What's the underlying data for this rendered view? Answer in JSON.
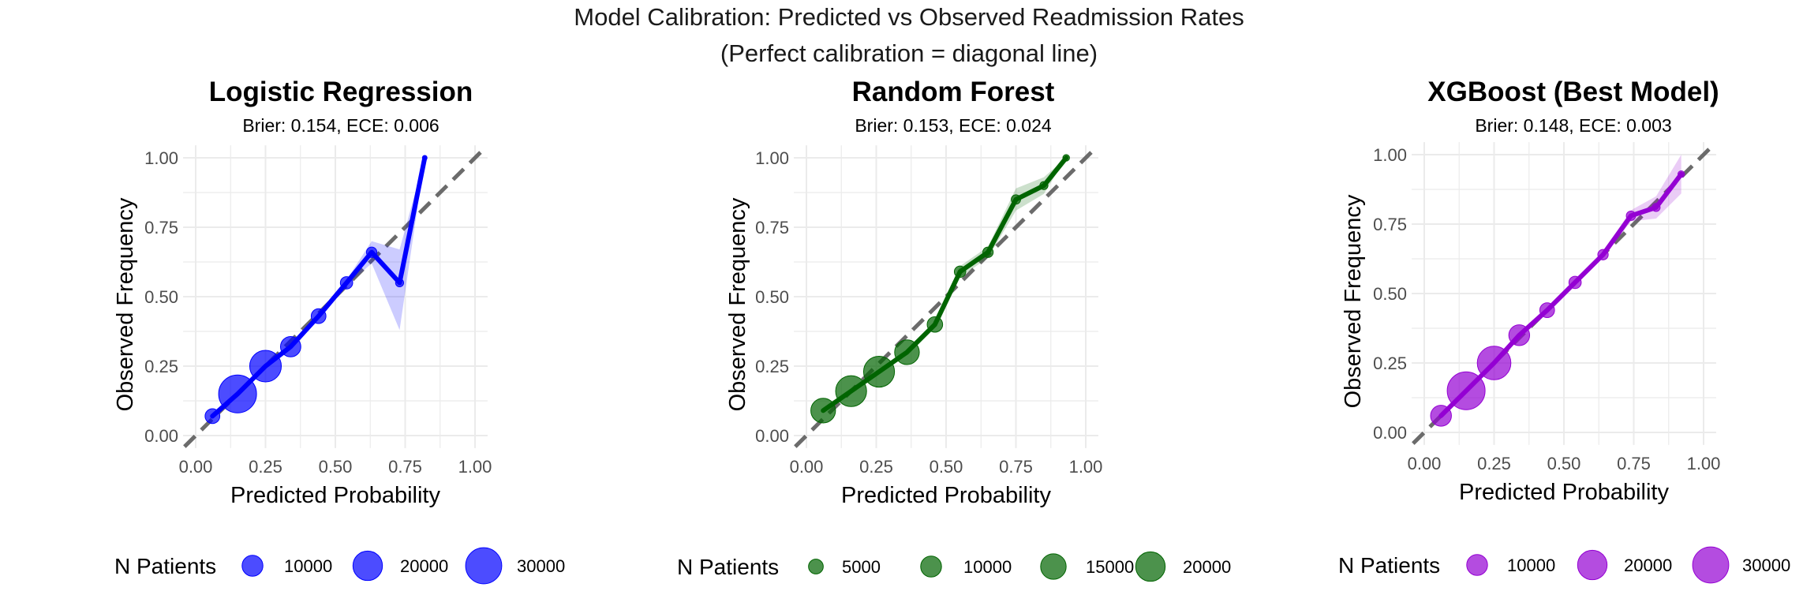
{
  "figure": {
    "title": "Model Calibration: Predicted vs Observed Readmission Rates",
    "subtitle": "(Perfect calibration = diagonal line)"
  },
  "chart_data": [
    {
      "type": "line",
      "title": "Logistic Regression",
      "subtitle": "Brier: 0.154, ECE: 0.006",
      "xlabel": "Predicted Probability",
      "ylabel": "Observed Frequency",
      "xlim": [
        0,
        1
      ],
      "ylim": [
        0,
        1
      ],
      "xticks": [
        "0.00",
        "0.25",
        "0.50",
        "0.75",
        "1.00"
      ],
      "yticks": [
        "0.00",
        "0.25",
        "0.50",
        "0.75",
        "1.00"
      ],
      "color": "#0000ff",
      "reference_line": "diagonal",
      "grid": true,
      "x": [
        0.06,
        0.15,
        0.25,
        0.34,
        0.44,
        0.54,
        0.63,
        0.73,
        0.82
      ],
      "y": [
        0.07,
        0.15,
        0.25,
        0.32,
        0.43,
        0.55,
        0.66,
        0.55,
        1.0
      ],
      "ci_lower": [
        0.06,
        0.145,
        0.245,
        0.315,
        0.425,
        0.54,
        0.62,
        0.38,
        1.0
      ],
      "ci_upper": [
        0.08,
        0.155,
        0.255,
        0.325,
        0.435,
        0.56,
        0.7,
        0.67,
        1.0
      ],
      "n_patients": [
        5000,
        33000,
        23000,
        9500,
        5000,
        3500,
        2500,
        1500,
        500
      ],
      "legend": {
        "title": "N Patients",
        "values": [
          10000,
          20000,
          30000
        ],
        "labels": [
          "10000",
          "20000",
          "30000"
        ],
        "position": "bottom"
      }
    },
    {
      "type": "line",
      "title": "Random Forest",
      "subtitle": "Brier: 0.153, ECE: 0.024",
      "xlabel": "Predicted Probability",
      "ylabel": "Observed Frequency",
      "xlim": [
        0,
        1
      ],
      "ylim": [
        0,
        1
      ],
      "xticks": [
        "0.00",
        "0.25",
        "0.50",
        "0.75",
        "1.00"
      ],
      "yticks": [
        "0.00",
        "0.25",
        "0.50",
        "0.75",
        "1.00"
      ],
      "color": "#006400",
      "reference_line": "diagonal",
      "grid": true,
      "x": [
        0.06,
        0.16,
        0.26,
        0.36,
        0.46,
        0.55,
        0.65,
        0.75,
        0.85,
        0.93
      ],
      "y": [
        0.09,
        0.16,
        0.23,
        0.3,
        0.4,
        0.59,
        0.66,
        0.85,
        0.9,
        1.0
      ],
      "ci_lower": [
        0.085,
        0.155,
        0.225,
        0.295,
        0.39,
        0.57,
        0.64,
        0.81,
        0.87,
        1.0
      ],
      "ci_upper": [
        0.095,
        0.165,
        0.235,
        0.305,
        0.41,
        0.61,
        0.68,
        0.89,
        0.93,
        1.0
      ],
      "n_patients": [
        14000,
        22000,
        22000,
        14000,
        5500,
        3000,
        2500,
        2000,
        1500,
        1000
      ],
      "legend": {
        "title": "N Patients",
        "values": [
          5000,
          10000,
          15000,
          20000
        ],
        "labels": [
          "5000",
          "10000",
          "15000",
          "20000"
        ],
        "position": "bottom"
      }
    },
    {
      "type": "line",
      "title": "XGBoost (Best Model)",
      "subtitle": "Brier: 0.148, ECE: 0.003",
      "xlabel": "Predicted Probability",
      "ylabel": "Observed Frequency",
      "xlim": [
        0,
        1
      ],
      "ylim": [
        0,
        1
      ],
      "xticks": [
        "0.00",
        "0.25",
        "0.50",
        "0.75",
        "1.00"
      ],
      "yticks": [
        "0.00",
        "0.25",
        "0.50",
        "0.75",
        "1.00"
      ],
      "color": "#9400d3",
      "reference_line": "diagonal",
      "grid": true,
      "x": [
        0.06,
        0.15,
        0.25,
        0.34,
        0.44,
        0.54,
        0.64,
        0.74,
        0.83,
        0.92
      ],
      "y": [
        0.06,
        0.15,
        0.25,
        0.35,
        0.44,
        0.54,
        0.64,
        0.78,
        0.81,
        0.93
      ],
      "ci_lower": [
        0.055,
        0.145,
        0.245,
        0.345,
        0.435,
        0.535,
        0.63,
        0.76,
        0.77,
        0.86
      ],
      "ci_upper": [
        0.065,
        0.155,
        0.255,
        0.355,
        0.445,
        0.545,
        0.65,
        0.8,
        0.85,
        1.0
      ],
      "n_patients": [
        10000,
        33000,
        26000,
        10000,
        5000,
        3500,
        2500,
        2000,
        1500,
        1000
      ],
      "legend": {
        "title": "N Patients",
        "values": [
          10000,
          20000,
          30000
        ],
        "labels": [
          "10000",
          "20000",
          "30000"
        ],
        "position": "bottom"
      }
    }
  ]
}
